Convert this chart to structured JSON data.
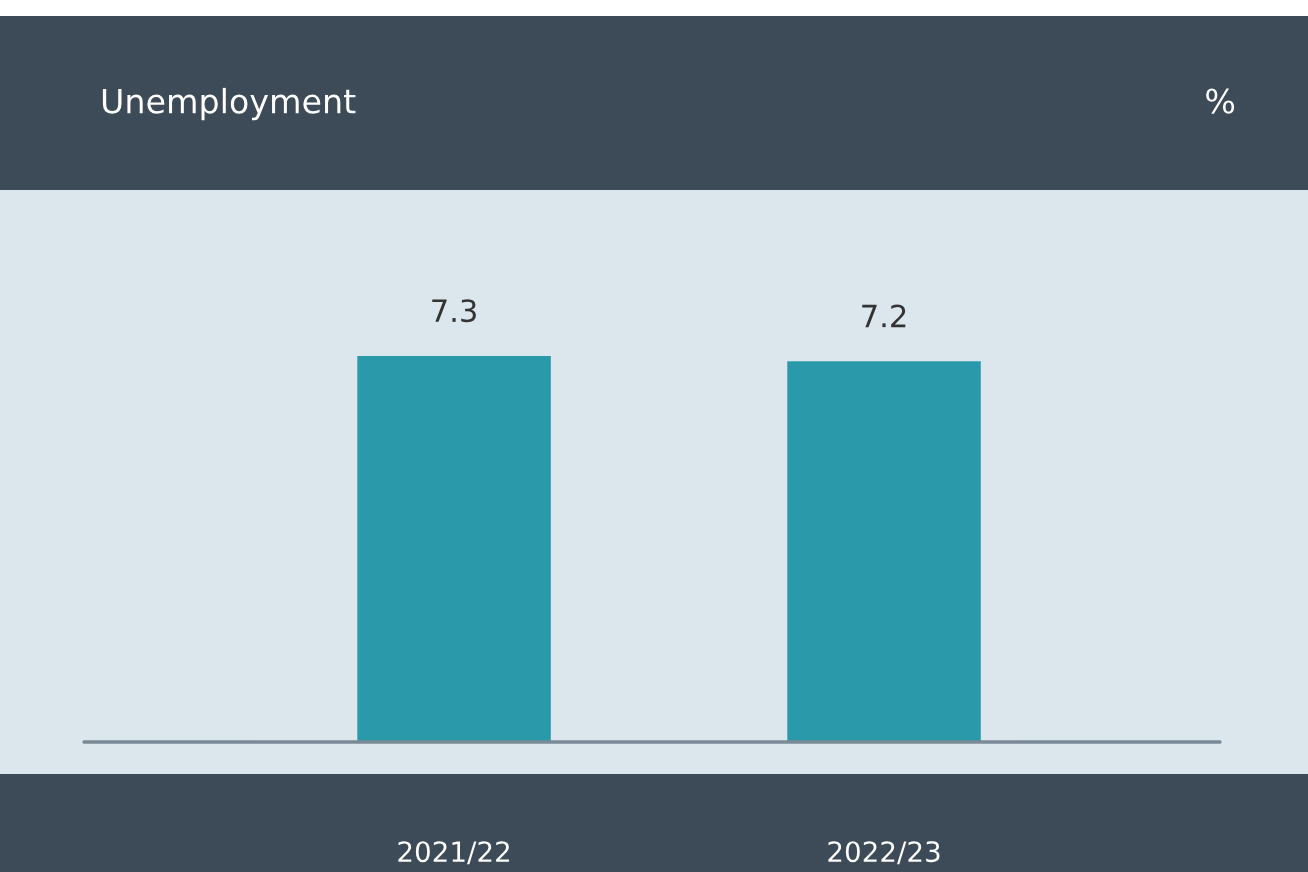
{
  "chart_data": {
    "type": "bar",
    "title": "Unemployment",
    "annotations": [
      "%"
    ],
    "categories": [
      "2021/22",
      "2022/23"
    ],
    "values": [
      7.3,
      7.2
    ],
    "color": "#2a9aab",
    "data_labels": true
  }
}
